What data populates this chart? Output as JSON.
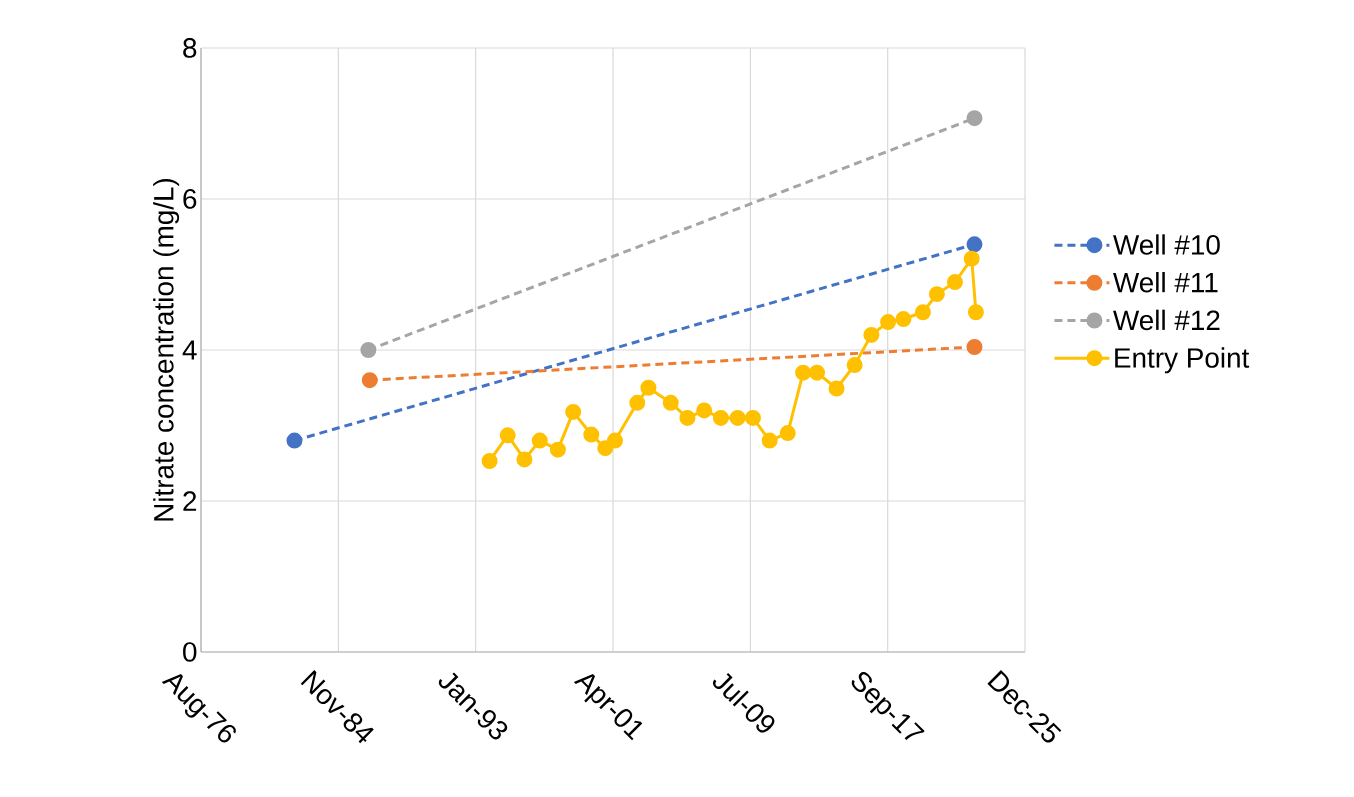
{
  "chart_data": {
    "type": "line",
    "ylabel": "Nitrate concentration (mg/L)",
    "xlim": [
      "1976-08-28",
      "2025-12-09"
    ],
    "xticks": [
      {
        "value": "1976-08-28",
        "label": "Aug-76"
      },
      {
        "value": "1984-11-14",
        "label": "Nov-84"
      },
      {
        "value": "1993-01-31",
        "label": "Jan-93"
      },
      {
        "value": "2001-04-19",
        "label": "Apr-01"
      },
      {
        "value": "2009-07-06",
        "label": "Jul-09"
      },
      {
        "value": "2017-09-22",
        "label": "Sep-17"
      },
      {
        "value": "2025-12-09",
        "label": "Dec-25"
      }
    ],
    "ylim": [
      0,
      8
    ],
    "yticks": [
      0,
      2,
      4,
      6,
      8
    ],
    "grid": true,
    "legend": "right",
    "marker": "circle",
    "series": [
      {
        "name": "Well #10",
        "color": "#4472c4",
        "line_style": "dashed",
        "x": [
          "1982-04",
          "2022-12"
        ],
        "values": [
          2.8,
          5.4
        ]
      },
      {
        "name": "Well #11",
        "color": "#ed7d31",
        "line_style": "dashed",
        "x": [
          "1986-10",
          "2022-12"
        ],
        "values": [
          3.6,
          4.04
        ]
      },
      {
        "name": "Well #12",
        "color": "#a5a5a5",
        "line_style": "dashed",
        "x": [
          "1986-09",
          "2022-12"
        ],
        "values": [
          4.0,
          7.07
        ]
      },
      {
        "name": "Entry Point",
        "color": "#ffc000",
        "line_style": "solid",
        "x": [
          "1993-12",
          "1995-01",
          "1996-01",
          "1996-12",
          "1998-01",
          "1998-12",
          "2000-01",
          "2000-11",
          "2001-06",
          "2002-10",
          "2003-06",
          "2004-10",
          "2005-10",
          "2006-10",
          "2007-10",
          "2008-10",
          "2009-09",
          "2010-09",
          "2011-10",
          "2012-09",
          "2013-07",
          "2014-09",
          "2015-10",
          "2016-10",
          "2017-10",
          "2018-09",
          "2019-11",
          "2020-09",
          "2021-10",
          "2022-10",
          "2023-01"
        ],
        "values": [
          2.53,
          2.87,
          2.55,
          2.8,
          2.68,
          3.18,
          2.88,
          2.7,
          2.8,
          3.3,
          3.5,
          3.3,
          3.1,
          3.2,
          3.1,
          3.1,
          3.1,
          2.8,
          2.9,
          3.7,
          3.7,
          3.49,
          3.8,
          4.2,
          4.37,
          4.41,
          4.5,
          4.74,
          4.9,
          5.21,
          4.5
        ]
      }
    ]
  }
}
